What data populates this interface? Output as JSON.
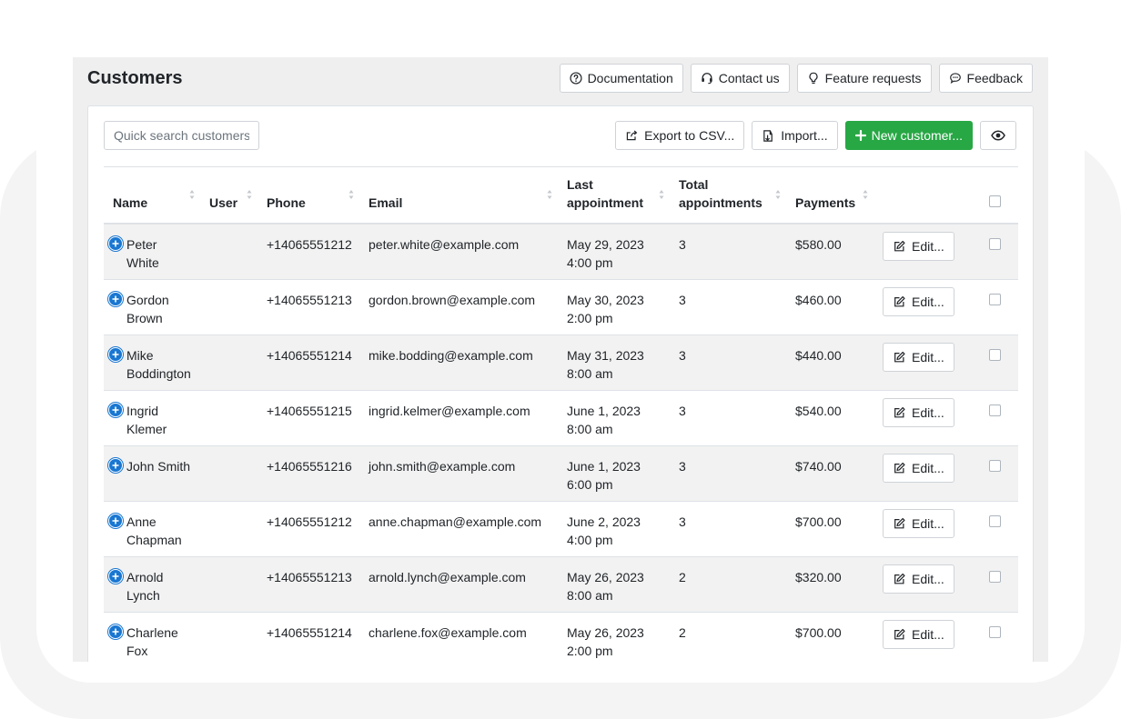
{
  "page": {
    "title": "Customers"
  },
  "header_actions": {
    "documentation": "Documentation",
    "contact": "Contact us",
    "feature_requests": "Feature requests",
    "feedback": "Feedback"
  },
  "toolbar": {
    "search_placeholder": "Quick search customers",
    "export": "Export to CSV...",
    "import": "Import...",
    "new_customer": "New customer..."
  },
  "table": {
    "columns": {
      "name": "Name",
      "user": "User",
      "phone": "Phone",
      "email": "Email",
      "last_1": "Last",
      "last_2": "appointment",
      "total_1": "Total",
      "total_2": "appointments",
      "payments": "Payments"
    },
    "edit_label": "Edit...",
    "rows": [
      {
        "first": "Peter",
        "last": "White",
        "phone": "+14065551212",
        "email": "peter.white@example.com",
        "date": "May 29, 2023",
        "time": "4:00 pm",
        "total": "3",
        "payments": "$580.00"
      },
      {
        "first": "Gordon",
        "last": "Brown",
        "phone": "+14065551213",
        "email": "gordon.brown@example.com",
        "date": "May 30, 2023",
        "time": "2:00 pm",
        "total": "3",
        "payments": "$460.00"
      },
      {
        "first": "Mike",
        "last": "Boddington",
        "phone": "+14065551214",
        "email": "mike.bodding@example.com",
        "date": "May 31, 2023",
        "time": "8:00 am",
        "total": "3",
        "payments": "$440.00"
      },
      {
        "first": "Ingrid",
        "last": "Klemer",
        "phone": "+14065551215",
        "email": "ingrid.kelmer@example.com",
        "date": "June 1, 2023",
        "time": "8:00 am",
        "total": "3",
        "payments": "$540.00"
      },
      {
        "first": "John Smith",
        "last": "",
        "phone": "+14065551216",
        "email": "john.smith@example.com",
        "date": "June 1, 2023",
        "time": "6:00 pm",
        "total": "3",
        "payments": "$740.00"
      },
      {
        "first": "Anne",
        "last": "Chapman",
        "phone": "+14065551212",
        "email": "anne.chapman@example.com",
        "date": "June 2, 2023",
        "time": "4:00 pm",
        "total": "3",
        "payments": "$700.00"
      },
      {
        "first": "Arnold",
        "last": "Lynch",
        "phone": "+14065551213",
        "email": "arnold.lynch@example.com",
        "date": "May 26, 2023",
        "time": "8:00 am",
        "total": "2",
        "payments": "$320.00"
      },
      {
        "first": "Charlene",
        "last": "Fox",
        "phone": "+14065551214",
        "email": "charlene.fox@example.com",
        "date": "May 26, 2023",
        "time": "2:00 pm",
        "total": "2",
        "payments": "$700.00"
      }
    ]
  },
  "colors": {
    "accent": "#1977d2",
    "success": "#28a745"
  }
}
